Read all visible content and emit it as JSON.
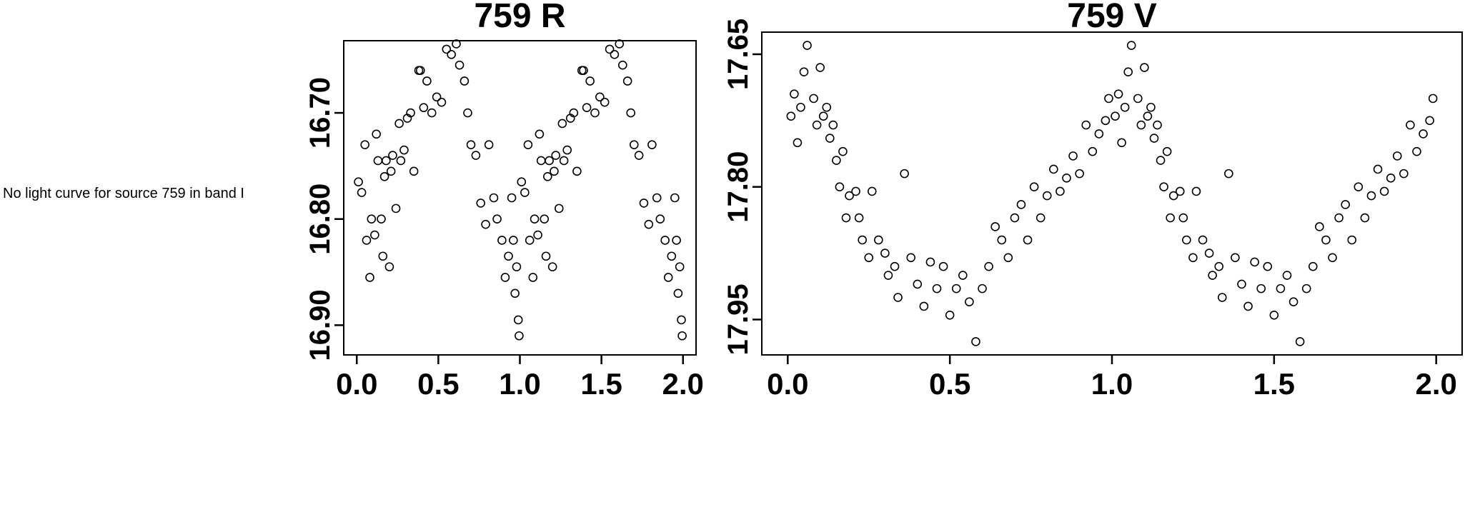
{
  "message": {
    "text": "No light curve for source 759 in band I"
  },
  "colors": {
    "foreground": "#000000",
    "background": "#ffffff"
  },
  "chart_data": [
    {
      "type": "scatter",
      "title": "759 R",
      "xlabel": "",
      "ylabel": "",
      "x_is_phase": true,
      "phase_folded_duplicate": true,
      "marker": "open-circle",
      "y_axis_is_magnitude_inverted": true,
      "xlim": [
        -0.08,
        2.08
      ],
      "ylim_top": 16.632,
      "ylim_bottom": 16.928,
      "x_ticks": [
        0.0,
        0.5,
        1.0,
        1.5,
        2.0
      ],
      "x_tick_labels": [
        "0.0",
        "0.5",
        "1.0",
        "1.5",
        "2.0"
      ],
      "y_ticks": [
        16.7,
        16.8,
        16.9
      ],
      "y_tick_labels": [
        "16.70",
        "16.80",
        "16.90"
      ],
      "points": [
        [
          0.01,
          16.765
        ],
        [
          0.03,
          16.775
        ],
        [
          0.05,
          16.73
        ],
        [
          0.06,
          16.82
        ],
        [
          0.08,
          16.855
        ],
        [
          0.09,
          16.8
        ],
        [
          0.11,
          16.815
        ],
        [
          0.12,
          16.72
        ],
        [
          0.13,
          16.745
        ],
        [
          0.15,
          16.8
        ],
        [
          0.16,
          16.835
        ],
        [
          0.17,
          16.76
        ],
        [
          0.18,
          16.745
        ],
        [
          0.2,
          16.845
        ],
        [
          0.21,
          16.755
        ],
        [
          0.22,
          16.74
        ],
        [
          0.24,
          16.79
        ],
        [
          0.26,
          16.71
        ],
        [
          0.27,
          16.745
        ],
        [
          0.29,
          16.735
        ],
        [
          0.31,
          16.705
        ],
        [
          0.33,
          16.7
        ],
        [
          0.35,
          16.755
        ],
        [
          0.38,
          16.66
        ],
        [
          0.39,
          16.66
        ],
        [
          0.41,
          16.695
        ],
        [
          0.43,
          16.67
        ],
        [
          0.46,
          16.7
        ],
        [
          0.49,
          16.685
        ],
        [
          0.52,
          16.69
        ],
        [
          0.55,
          16.64
        ],
        [
          0.58,
          16.645
        ],
        [
          0.61,
          16.635
        ],
        [
          0.63,
          16.655
        ],
        [
          0.66,
          16.67
        ],
        [
          0.68,
          16.7
        ],
        [
          0.7,
          16.73
        ],
        [
          0.73,
          16.74
        ],
        [
          0.76,
          16.785
        ],
        [
          0.79,
          16.805
        ],
        [
          0.81,
          16.73
        ],
        [
          0.84,
          16.78
        ],
        [
          0.86,
          16.8
        ],
        [
          0.89,
          16.82
        ],
        [
          0.91,
          16.855
        ],
        [
          0.93,
          16.835
        ],
        [
          0.95,
          16.78
        ],
        [
          0.96,
          16.82
        ],
        [
          0.97,
          16.87
        ],
        [
          0.98,
          16.845
        ],
        [
          0.99,
          16.895
        ],
        [
          0.995,
          16.91
        ]
      ]
    },
    {
      "type": "scatter",
      "title": "759 V",
      "xlabel": "",
      "ylabel": "",
      "x_is_phase": true,
      "phase_folded_duplicate": true,
      "marker": "open-circle",
      "y_axis_is_magnitude_inverted": true,
      "xlim": [
        -0.08,
        2.08
      ],
      "ylim_top": 17.625,
      "ylim_bottom": 17.99,
      "x_ticks": [
        0.0,
        0.5,
        1.0,
        1.5,
        2.0
      ],
      "x_tick_labels": [
        "0.0",
        "0.5",
        "1.0",
        "1.5",
        "2.0"
      ],
      "y_ticks": [
        17.65,
        17.8,
        17.95
      ],
      "y_tick_labels": [
        "17.65",
        "17.80",
        "17.95"
      ],
      "points": [
        [
          0.01,
          17.72
        ],
        [
          0.02,
          17.695
        ],
        [
          0.03,
          17.75
        ],
        [
          0.04,
          17.71
        ],
        [
          0.05,
          17.67
        ],
        [
          0.06,
          17.64
        ],
        [
          0.08,
          17.7
        ],
        [
          0.09,
          17.73
        ],
        [
          0.1,
          17.665
        ],
        [
          0.11,
          17.72
        ],
        [
          0.12,
          17.71
        ],
        [
          0.13,
          17.745
        ],
        [
          0.14,
          17.73
        ],
        [
          0.15,
          17.77
        ],
        [
          0.16,
          17.8
        ],
        [
          0.17,
          17.76
        ],
        [
          0.18,
          17.835
        ],
        [
          0.19,
          17.81
        ],
        [
          0.21,
          17.805
        ],
        [
          0.22,
          17.835
        ],
        [
          0.23,
          17.86
        ],
        [
          0.25,
          17.88
        ],
        [
          0.26,
          17.805
        ],
        [
          0.28,
          17.86
        ],
        [
          0.3,
          17.875
        ],
        [
          0.31,
          17.9
        ],
        [
          0.33,
          17.89
        ],
        [
          0.34,
          17.925
        ],
        [
          0.36,
          17.785
        ],
        [
          0.38,
          17.88
        ],
        [
          0.4,
          17.91
        ],
        [
          0.42,
          17.935
        ],
        [
          0.44,
          17.885
        ],
        [
          0.46,
          17.915
        ],
        [
          0.48,
          17.89
        ],
        [
          0.5,
          17.945
        ],
        [
          0.52,
          17.915
        ],
        [
          0.54,
          17.9
        ],
        [
          0.56,
          17.93
        ],
        [
          0.58,
          17.975
        ],
        [
          0.6,
          17.915
        ],
        [
          0.62,
          17.89
        ],
        [
          0.64,
          17.845
        ],
        [
          0.66,
          17.86
        ],
        [
          0.68,
          17.88
        ],
        [
          0.7,
          17.835
        ],
        [
          0.72,
          17.82
        ],
        [
          0.74,
          17.86
        ],
        [
          0.76,
          17.8
        ],
        [
          0.78,
          17.835
        ],
        [
          0.8,
          17.81
        ],
        [
          0.82,
          17.78
        ],
        [
          0.84,
          17.805
        ],
        [
          0.86,
          17.79
        ],
        [
          0.88,
          17.765
        ],
        [
          0.9,
          17.785
        ],
        [
          0.92,
          17.73
        ],
        [
          0.94,
          17.76
        ],
        [
          0.96,
          17.74
        ],
        [
          0.98,
          17.725
        ],
        [
          0.99,
          17.7
        ]
      ]
    }
  ]
}
